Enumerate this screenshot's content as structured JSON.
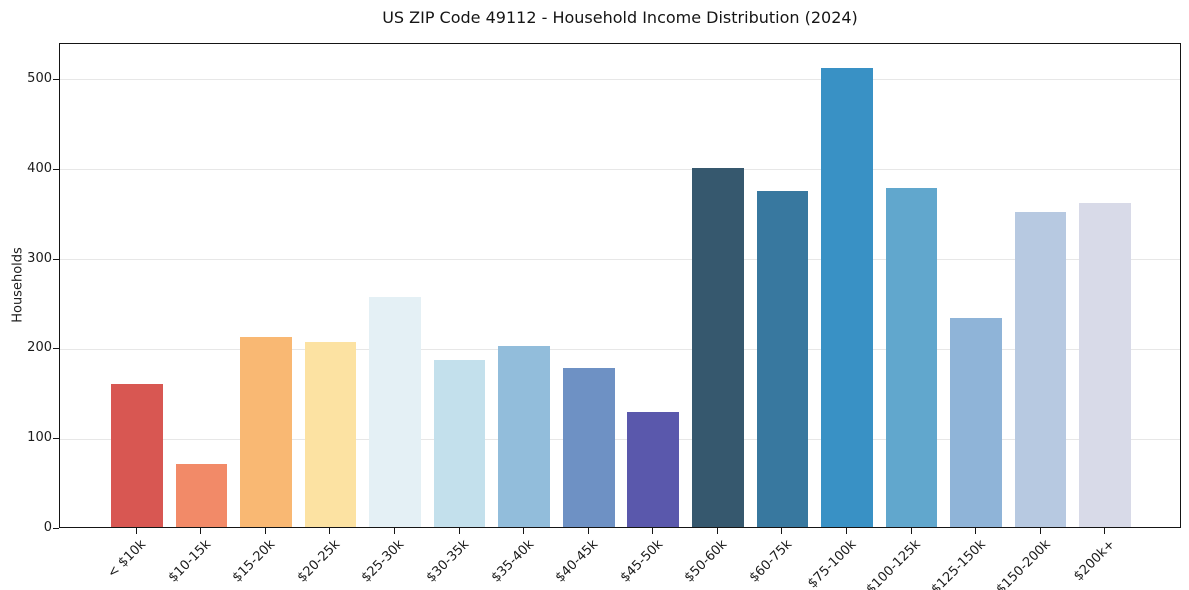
{
  "figure": {
    "background": "#ffffff"
  },
  "chart_data": {
    "type": "bar",
    "title": "US ZIP Code 49112 - Household Income Distribution (2024)",
    "xlabel": "",
    "ylabel": "Households",
    "categories": [
      "< $10k",
      "$10-15k",
      "$15-20k",
      "$20-25k",
      "$25-30k",
      "$30-35k",
      "$35-40k",
      "$40-45k",
      "$45-50k",
      "$50-60k",
      "$60-75k",
      "$75-100k",
      "$100-125k",
      "$125-150k",
      "$150-200k",
      "$200k+"
    ],
    "values": [
      160,
      70,
      212,
      206,
      257,
      186,
      202,
      177,
      128,
      401,
      375,
      512,
      378,
      233,
      352,
      361
    ],
    "bar_colors": [
      "#d85752",
      "#f28a68",
      "#f9b873",
      "#fce2a2",
      "#e4f0f5",
      "#c3e0ec",
      "#92bddb",
      "#6e91c4",
      "#5a58ac",
      "#36586e",
      "#38789f",
      "#3991c5",
      "#61a7cd",
      "#8fb4d8",
      "#b7c9e1",
      "#d8dae8"
    ],
    "yticks": [
      0,
      100,
      200,
      300,
      400,
      500
    ],
    "ylim": [
      0,
      540
    ],
    "xlim": [
      -1.19,
      16.19
    ],
    "bar_width_units": 0.8,
    "grid": "horizontal",
    "legend": "none",
    "colors": {
      "grid": "#e7e7e7",
      "axis": "#151515",
      "text": "#1c1c1c",
      "background": "#ffffff"
    }
  }
}
